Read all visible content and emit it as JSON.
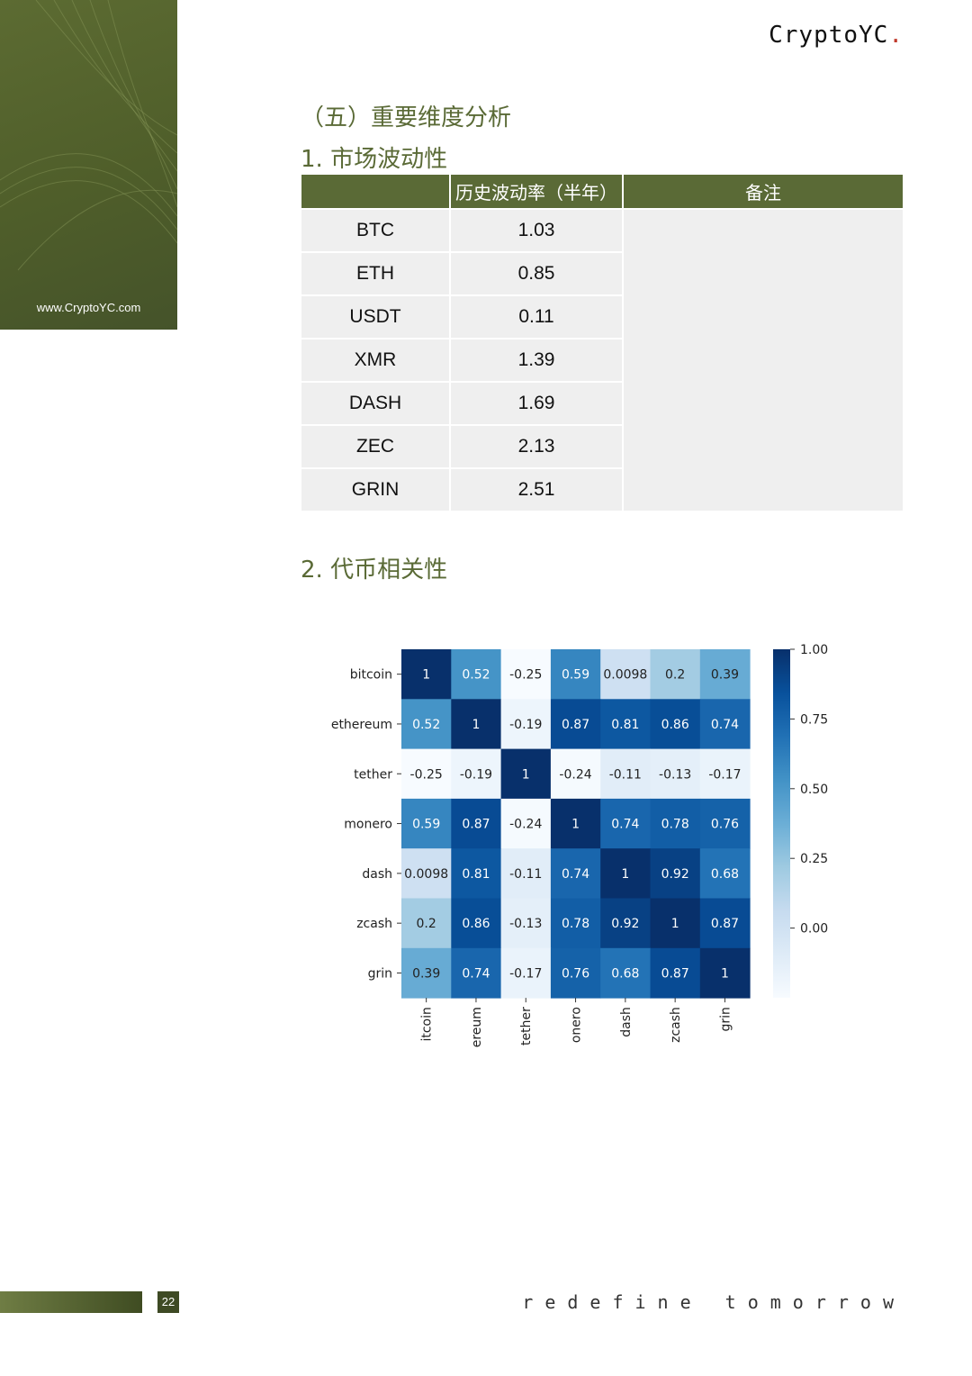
{
  "header": {
    "brand": "CryptoYC",
    "brand_dot": ".",
    "site_url": "www.CryptoYC.com"
  },
  "section_title": "（五）重要维度分析",
  "subsection1": "1. 市场波动性",
  "table": {
    "headers": [
      "",
      "历史波动率（半年）",
      "备注"
    ],
    "rows": [
      [
        "BTC",
        "1.03"
      ],
      [
        "ETH",
        "0.85"
      ],
      [
        "USDT",
        "0.11"
      ],
      [
        "XMR",
        "1.39"
      ],
      [
        "DASH",
        "1.69"
      ],
      [
        "ZEC",
        "2.13"
      ],
      [
        "GRIN",
        "2.51"
      ]
    ],
    "note": ""
  },
  "subsection2": "2. 代币相关性",
  "chart_data": {
    "type": "heatmap",
    "rows": [
      "bitcoin",
      "ethereum",
      "tether",
      "monero",
      "dash",
      "zcash",
      "grin"
    ],
    "cols": [
      "itcoin",
      "ereum",
      "tether",
      "onero",
      "dash",
      "zcash",
      "grin"
    ],
    "values": [
      [
        1,
        0.52,
        -0.25,
        0.59,
        0.0098,
        0.2,
        0.39
      ],
      [
        0.52,
        1,
        -0.19,
        0.87,
        0.81,
        0.86,
        0.74
      ],
      [
        -0.25,
        -0.19,
        1,
        -0.24,
        -0.11,
        -0.13,
        -0.17
      ],
      [
        0.59,
        0.87,
        -0.24,
        1,
        0.74,
        0.78,
        0.76
      ],
      [
        0.0098,
        0.81,
        -0.11,
        0.74,
        1,
        0.92,
        0.68
      ],
      [
        0.2,
        0.86,
        -0.13,
        0.78,
        0.92,
        1,
        0.87
      ],
      [
        0.39,
        0.74,
        -0.17,
        0.76,
        0.68,
        0.87,
        1
      ]
    ],
    "colorbar": {
      "ticks": [
        "1.00",
        "0.75",
        "0.50",
        "0.25",
        "0.00"
      ],
      "range": [
        -0.25,
        1.0
      ],
      "colormap": "Blues"
    }
  },
  "footer": {
    "page_number": "22",
    "tagline": "redefine tomorrow"
  },
  "colors": {
    "olive": "#5a6a36",
    "table_bg": "#efefef",
    "brand_dot": "#c0392b"
  }
}
